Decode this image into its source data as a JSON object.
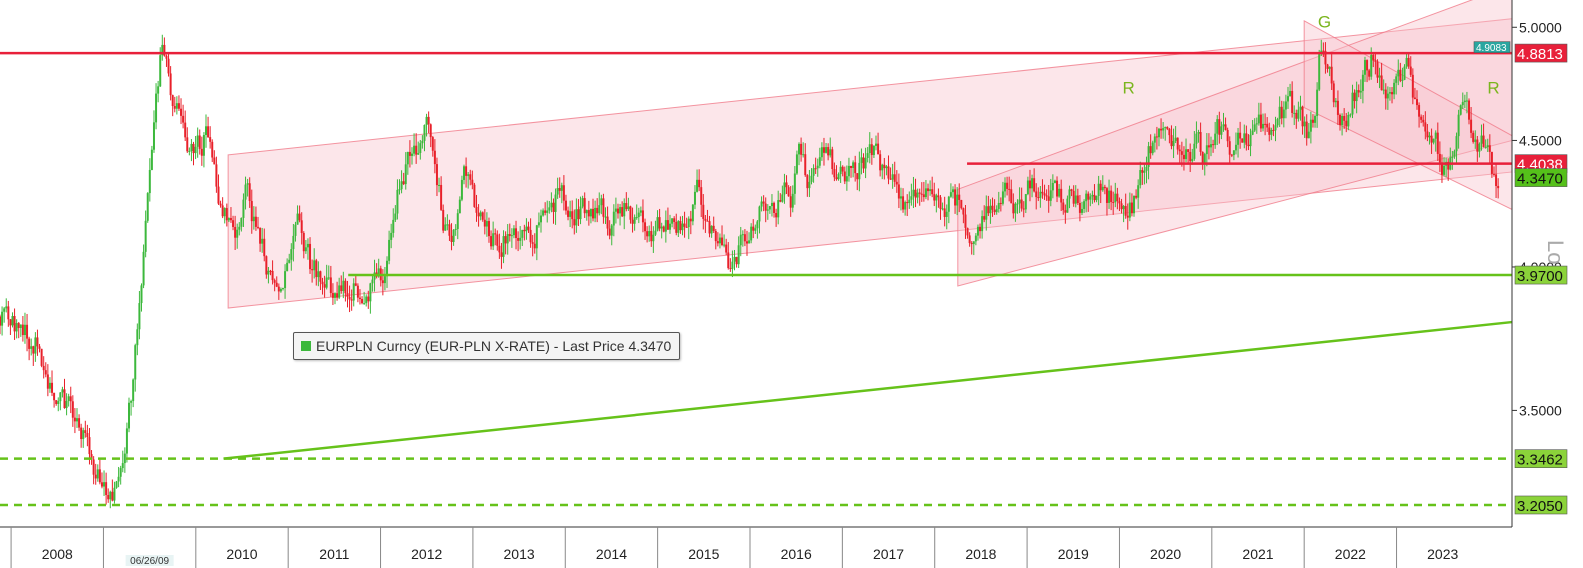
{
  "colors": {
    "up": "#3cb83c",
    "down": "#e8202a",
    "resistance": "#e8203a",
    "support": "#66c21a",
    "channel_fill": "#f8c4cc",
    "channel_edge": "#f07a8a",
    "annotation": "#7ab51d",
    "axis": "#333333"
  },
  "legend": {
    "text": "EURPLN Curncy (EUR-PLN X-RATE) - Last Price 4.3470",
    "swatch_color": "#3cb83c"
  },
  "chart_data": {
    "type": "candlestick",
    "instrument": "EURPLN Curncy (EUR-PLN X-RATE)",
    "last_price": 4.347,
    "y_scale": "log",
    "y_axis_title": "Log",
    "ylim": [
      3.14,
      5.1
    ],
    "xlim": [
      2007.38,
      2023.75
    ],
    "x_ticks": [
      "2008",
      "2009",
      "2010",
      "2011",
      "2012",
      "2013",
      "2014",
      "2015",
      "2016",
      "2017",
      "2018",
      "2019",
      "2020",
      "2021",
      "2022",
      "2023"
    ],
    "x_tick_positions": [
      2008,
      2009,
      2010,
      2011,
      2012,
      2013,
      2014,
      2015,
      2016,
      2017,
      2018,
      2019,
      2020,
      2021,
      2022,
      2023
    ],
    "x_tick_labels_shown": [
      "2008",
      "2010",
      "2011",
      "2012",
      "2013",
      "2014",
      "2015",
      "2016",
      "2017",
      "2018",
      "2019",
      "2020",
      "2021",
      "2022",
      "2023"
    ],
    "x_marker_label": "06/26/09",
    "y_ticks": [
      5.0,
      4.5,
      4.0,
      3.5
    ],
    "y_tick_labels": [
      "5.0000",
      "4.5000",
      "4.0000",
      "3.5000"
    ],
    "price_path": [
      [
        2007.38,
        3.82
      ],
      [
        2007.6,
        3.77
      ],
      [
        2007.8,
        3.72
      ],
      [
        2007.95,
        3.6
      ],
      [
        2008.1,
        3.52
      ],
      [
        2008.3,
        3.42
      ],
      [
        2008.45,
        3.3
      ],
      [
        2008.58,
        3.205
      ],
      [
        2008.7,
        3.3
      ],
      [
        2008.82,
        3.6
      ],
      [
        2008.9,
        3.95
      ],
      [
        2008.98,
        4.3
      ],
      [
        2009.05,
        4.62
      ],
      [
        2009.12,
        4.85
      ],
      [
        2009.2,
        4.78
      ],
      [
        2009.28,
        4.62
      ],
      [
        2009.4,
        4.5
      ],
      [
        2009.5,
        4.45
      ],
      [
        2009.6,
        4.52
      ],
      [
        2009.7,
        4.32
      ],
      [
        2009.8,
        4.2
      ],
      [
        2009.92,
        4.15
      ],
      [
        2010.05,
        4.27
      ],
      [
        2010.2,
        4.08
      ],
      [
        2010.3,
        3.96
      ],
      [
        2010.45,
        3.93
      ],
      [
        2010.6,
        4.1
      ],
      [
        2010.75,
        3.98
      ],
      [
        2010.9,
        3.95
      ],
      [
        2011.05,
        3.9
      ],
      [
        2011.2,
        3.98
      ],
      [
        2011.35,
        3.92
      ],
      [
        2011.5,
        3.97
      ],
      [
        2011.62,
        4.1
      ],
      [
        2011.72,
        4.35
      ],
      [
        2011.82,
        4.48
      ],
      [
        2011.9,
        4.45
      ],
      [
        2012.0,
        4.55
      ],
      [
        2012.08,
        4.42
      ],
      [
        2012.18,
        4.2
      ],
      [
        2012.3,
        4.15
      ],
      [
        2012.42,
        4.38
      ],
      [
        2012.55,
        4.15
      ],
      [
        2012.7,
        4.1
      ],
      [
        2012.85,
        4.14
      ],
      [
        2013.0,
        4.16
      ],
      [
        2013.15,
        4.12
      ],
      [
        2013.3,
        4.25
      ],
      [
        2013.45,
        4.28
      ],
      [
        2013.6,
        4.22
      ],
      [
        2013.75,
        4.2
      ],
      [
        2013.9,
        4.21
      ],
      [
        2014.05,
        4.18
      ],
      [
        2014.2,
        4.2
      ],
      [
        2014.35,
        4.17
      ],
      [
        2014.5,
        4.15
      ],
      [
        2014.65,
        4.2
      ],
      [
        2014.8,
        4.2
      ],
      [
        2014.95,
        4.3
      ],
      [
        2015.05,
        4.18
      ],
      [
        2015.15,
        4.12
      ],
      [
        2015.28,
        4.02
      ],
      [
        2015.4,
        4.1
      ],
      [
        2015.55,
        4.18
      ],
      [
        2015.7,
        4.2
      ],
      [
        2015.85,
        4.24
      ],
      [
        2015.95,
        4.28
      ],
      [
        2016.05,
        4.46
      ],
      [
        2016.15,
        4.33
      ],
      [
        2016.3,
        4.42
      ],
      [
        2016.42,
        4.36
      ],
      [
        2016.55,
        4.3
      ],
      [
        2016.7,
        4.37
      ],
      [
        2016.82,
        4.45
      ],
      [
        2016.95,
        4.38
      ],
      [
        2017.05,
        4.3
      ],
      [
        2017.2,
        4.26
      ],
      [
        2017.35,
        4.22
      ],
      [
        2017.5,
        4.25
      ],
      [
        2017.65,
        4.28
      ],
      [
        2017.8,
        4.21
      ],
      [
        2017.95,
        4.17
      ],
      [
        2018.1,
        4.24
      ],
      [
        2018.25,
        4.3
      ],
      [
        2018.4,
        4.28
      ],
      [
        2018.55,
        4.3
      ],
      [
        2018.7,
        4.31
      ],
      [
        2018.85,
        4.29
      ],
      [
        2019.0,
        4.3
      ],
      [
        2019.1,
        4.28
      ],
      [
        2019.25,
        4.3
      ],
      [
        2019.38,
        4.27
      ],
      [
        2019.5,
        4.3
      ],
      [
        2019.6,
        4.26
      ],
      [
        2019.7,
        4.28
      ],
      [
        2019.8,
        4.46
      ],
      [
        2019.9,
        4.55
      ],
      [
        2020.0,
        4.45
      ],
      [
        2020.12,
        4.4
      ],
      [
        2020.25,
        4.48
      ],
      [
        2020.4,
        4.45
      ],
      [
        2020.55,
        4.56
      ],
      [
        2020.68,
        4.5
      ],
      [
        2020.8,
        4.48
      ],
      [
        2020.92,
        4.55
      ],
      [
        2021.05,
        4.52
      ],
      [
        2021.2,
        4.57
      ],
      [
        2021.35,
        4.62
      ],
      [
        2021.45,
        4.58
      ],
      [
        2021.55,
        4.54
      ],
      [
        2021.62,
        4.62
      ],
      [
        2021.68,
        4.91
      ],
      [
        2021.75,
        4.74
      ],
      [
        2021.85,
        4.64
      ],
      [
        2021.95,
        4.65
      ],
      [
        2022.05,
        4.71
      ],
      [
        2022.15,
        4.78
      ],
      [
        2022.25,
        4.87
      ],
      [
        2022.35,
        4.75
      ],
      [
        2022.45,
        4.7
      ],
      [
        2022.55,
        4.72
      ],
      [
        2022.62,
        4.77
      ],
      [
        2022.7,
        4.67
      ],
      [
        2022.8,
        4.6
      ],
      [
        2022.9,
        4.45
      ],
      [
        2023.0,
        4.42
      ],
      [
        2023.12,
        4.45
      ],
      [
        2023.2,
        4.68
      ],
      [
        2023.28,
        4.6
      ],
      [
        2023.35,
        4.48
      ],
      [
        2023.45,
        4.44
      ],
      [
        2023.52,
        4.35
      ],
      [
        2023.6,
        4.347
      ]
    ],
    "horizontal_levels": [
      {
        "value": 4.8813,
        "label": "4.8813",
        "color": "#e8203a",
        "style": "solid"
      },
      {
        "value": 4.4038,
        "label": "4.4038",
        "color": "#e8203a",
        "style": "solid"
      },
      {
        "value": 3.97,
        "label": "3.9700",
        "color": "#66c21a",
        "style": "solid"
      },
      {
        "value": 3.3462,
        "label": "3.3462",
        "color": "#66c21a",
        "style": "dashed"
      },
      {
        "value": 3.205,
        "label": "3.2050",
        "color": "#66c21a",
        "style": "dashed"
      }
    ],
    "price_tags": [
      {
        "value": 4.347,
        "label": "4.3470",
        "bg": "#55c01a"
      },
      {
        "value": 4.9083,
        "label": "4.9083",
        "bg": "#2aa6a0",
        "small": true
      }
    ],
    "trendlines": [
      {
        "from": [
          2009.8,
          3.3462
        ],
        "to": [
          2023.75,
          3.8
        ],
        "color": "#66c21a"
      }
    ],
    "channels": [
      {
        "x1": 2009.85,
        "x2": 2023.75,
        "upper": [
          4.44,
          5.04
        ],
        "lower": [
          3.85,
          4.37
        ]
      },
      {
        "x1": 2017.75,
        "x2": 2023.75,
        "upper": [
          4.3,
          5.2
        ],
        "lower": [
          3.93,
          4.5
        ]
      },
      {
        "x1": 2021.5,
        "x2": 2023.75,
        "upper": [
          5.03,
          4.52
        ],
        "lower": [
          4.64,
          4.22
        ]
      }
    ],
    "annotations": [
      {
        "text": "R",
        "x": 2019.6,
        "y": 4.7
      },
      {
        "text": "G",
        "x": 2021.72,
        "y": 5.0
      },
      {
        "text": "R",
        "x": 2023.55,
        "y": 4.7
      }
    ]
  }
}
